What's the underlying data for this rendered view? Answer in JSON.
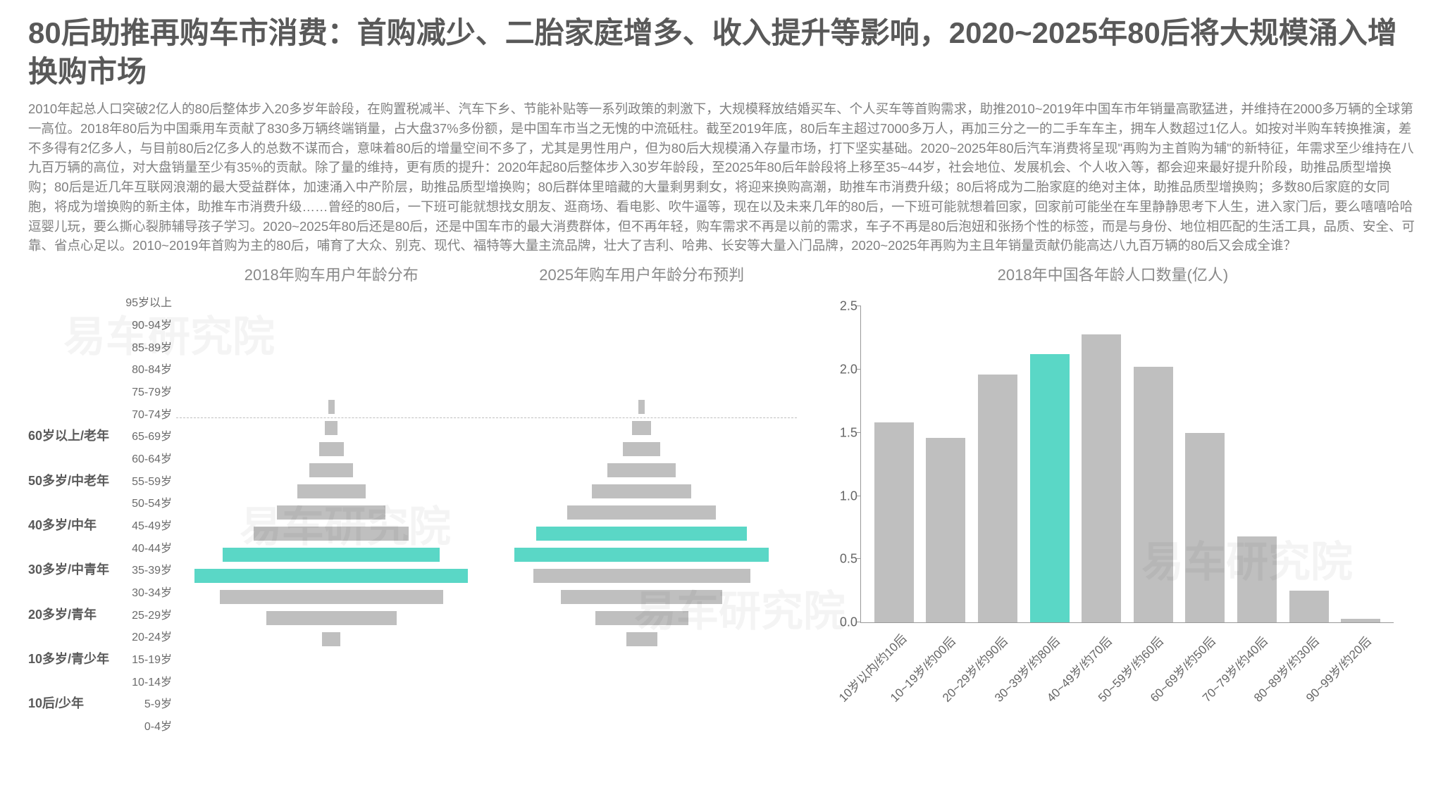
{
  "title": "80后助推再购车市消费：首购减少、二胎家庭增多、收入提升等影响，2020~2025年80后将大规模涌入增换购市场",
  "body_text": "2010年起总人口突破2亿人的80后整体步入20多岁年龄段，在购置税减半、汽车下乡、节能补贴等一系列政策的刺激下，大规模释放结婚买车、个人买车等首购需求，助推2010~2019年中国车市年销量高歌猛进，并维持在2000多万辆的全球第一高位。2018年80后为中国乘用车贡献了830多万辆终端销量，占大盘37%多份额，是中国车市当之无愧的中流砥柱。截至2019年底，80后车主超过7000多万人，再加三分之一的二手车车主，拥车人数超过1亿人。如按对半购车转换推演，差不多得有2亿多人，与目前80后2亿多人的总数不谋而合，意味着80后的增量空间不多了，尤其是男性用户，但为80后大规模涌入存量市场，打下坚实基础。2020~2025年80后汽车消费将呈现\"再购为主首购为辅\"的新特征，年需求至少维持在八九百万辆的高位，对大盘销量至少有35%的贡献。除了量的维持，更有质的提升：2020年起80后整体步入30岁年龄段，至2025年80后年龄段将上移至35~44岁，社会地位、发展机会、个人收入等，都会迎来最好提升阶段，助推品质型增换购；80后是近几年互联网浪潮的最大受益群体，加速涌入中产阶层，助推品质型增换购；80后群体里暗藏的大量剩男剩女，将迎来换购高潮，助推车市消费升级；80后将成为二胎家庭的绝对主体，助推品质型增换购；多数80后家庭的女同胞，将成为增换购的新主体，助推车市消费升级……曾经的80后，一下班可能就想找女朋友、逛商场、看电影、吹牛逼等，现在以及未来几年的80后，一下班可能就想着回家，回家前可能坐在车里静静思考下人生，进入家门后，要么嘻嘻哈哈逗婴儿玩，要么撕心裂肺辅导孩子学习。2020~2025年80后还是80后，还是中国车市的最大消费群体，但不再年轻，购车需求不再是以前的需求，车子不再是80后泡妞和张扬个性的标签，而是与身份、地位相匹配的生活工具，品质、安全、可靠、省点心足以。2010~2019年首购为主的80后，哺育了大众、别克、现代、福特等大量主流品牌，壮大了吉利、哈弗、长安等大量入门品牌，2020~2025年再购为主且年销量贡献仍能高达八九百万辆的80后又会成全谁？",
  "colors": {
    "bar_default": "#bfbfbf",
    "bar_highlight": "#5ad7c6",
    "title_color": "#595959",
    "body_color": "#808080",
    "chart_title_color": "#898989",
    "background": "#ffffff",
    "axis_color": "#999999",
    "divider_color": "#bfbfbf"
  },
  "pyramids": {
    "title_2018": "2018年购车用户年龄分布",
    "title_2025": "2025年购车用户年龄分布预判",
    "max_width_pct": 100,
    "rows": [
      {
        "age": "95岁以上",
        "group": "",
        "v2018": 0,
        "v2025": 0,
        "hl2018": false,
        "hl2025": false
      },
      {
        "age": "90-94岁",
        "group": "",
        "v2018": 0,
        "v2025": 0,
        "hl2018": false,
        "hl2025": false
      },
      {
        "age": "85-89岁",
        "group": "",
        "v2018": 0,
        "v2025": 0,
        "hl2018": false,
        "hl2025": false
      },
      {
        "age": "80-84岁",
        "group": "",
        "v2018": 0,
        "v2025": 0,
        "hl2018": false,
        "hl2025": false
      },
      {
        "age": "75-79岁",
        "group": "",
        "v2018": 0,
        "v2025": 0,
        "hl2018": false,
        "hl2025": false
      },
      {
        "age": "70-74岁",
        "group": "",
        "v2018": 2,
        "v2025": 2,
        "hl2018": false,
        "hl2025": false
      },
      {
        "age": "65-69岁",
        "group": "60岁以上/老年",
        "v2018": 4,
        "v2025": 6,
        "hl2018": false,
        "hl2025": false
      },
      {
        "age": "60-64岁",
        "group": "",
        "v2018": 8,
        "v2025": 12,
        "hl2018": false,
        "hl2025": false
      },
      {
        "age": "55-59岁",
        "group": "50多岁/中老年",
        "v2018": 14,
        "v2025": 22,
        "hl2018": false,
        "hl2025": false
      },
      {
        "age": "50-54岁",
        "group": "",
        "v2018": 22,
        "v2025": 32,
        "hl2018": false,
        "hl2025": false
      },
      {
        "age": "45-49岁",
        "group": "40多岁/中年",
        "v2018": 35,
        "v2025": 48,
        "hl2018": false,
        "hl2025": false
      },
      {
        "age": "40-44岁",
        "group": "",
        "v2018": 50,
        "v2025": 68,
        "hl2018": false,
        "hl2025": true
      },
      {
        "age": "35-39岁",
        "group": "30多岁/中青年",
        "v2018": 70,
        "v2025": 82,
        "hl2018": true,
        "hl2025": true
      },
      {
        "age": "30-34岁",
        "group": "",
        "v2018": 88,
        "v2025": 70,
        "hl2018": true,
        "hl2025": false
      },
      {
        "age": "25-29岁",
        "group": "20多岁/青年",
        "v2018": 72,
        "v2025": 52,
        "hl2018": false,
        "hl2025": false
      },
      {
        "age": "20-24岁",
        "group": "",
        "v2018": 42,
        "v2025": 30,
        "hl2018": false,
        "hl2025": false
      },
      {
        "age": "15-19岁",
        "group": "10多岁/青少年",
        "v2018": 6,
        "v2025": 10,
        "hl2018": false,
        "hl2025": false
      },
      {
        "age": "10-14岁",
        "group": "",
        "v2018": 0,
        "v2025": 0,
        "hl2018": false,
        "hl2025": false
      },
      {
        "age": "5-9岁",
        "group": "10后/少年",
        "v2018": 0,
        "v2025": 0,
        "hl2018": false,
        "hl2025": false
      },
      {
        "age": "0-4岁",
        "group": "",
        "v2018": 0,
        "v2025": 0,
        "hl2018": false,
        "hl2025": false
      }
    ],
    "divider_after_index": 5
  },
  "bar_chart": {
    "title": "2018年中国各年龄人口数量(亿人)",
    "ymax": 2.5,
    "ytick_step": 0.5,
    "yticks": [
      "0.0",
      "0.5",
      "1.0",
      "1.5",
      "2.0",
      "2.5"
    ],
    "bars": [
      {
        "label": "10岁以内/约10后",
        "value": 1.58,
        "hl": false
      },
      {
        "label": "10~19岁/约00后",
        "value": 1.46,
        "hl": false
      },
      {
        "label": "20~29岁/约90后",
        "value": 1.96,
        "hl": false
      },
      {
        "label": "30~39岁/约80后",
        "value": 2.12,
        "hl": true
      },
      {
        "label": "40~49岁/约70后",
        "value": 2.28,
        "hl": false
      },
      {
        "label": "50~59岁/约60后",
        "value": 2.02,
        "hl": false
      },
      {
        "label": "60~69岁/约50后",
        "value": 1.5,
        "hl": false
      },
      {
        "label": "70~79岁/约40后",
        "value": 0.68,
        "hl": false
      },
      {
        "label": "80~89岁/约30后",
        "value": 0.25,
        "hl": false
      },
      {
        "label": "90~99岁/约20后",
        "value": 0.03,
        "hl": false
      }
    ]
  },
  "watermark_text": "易车研究院"
}
